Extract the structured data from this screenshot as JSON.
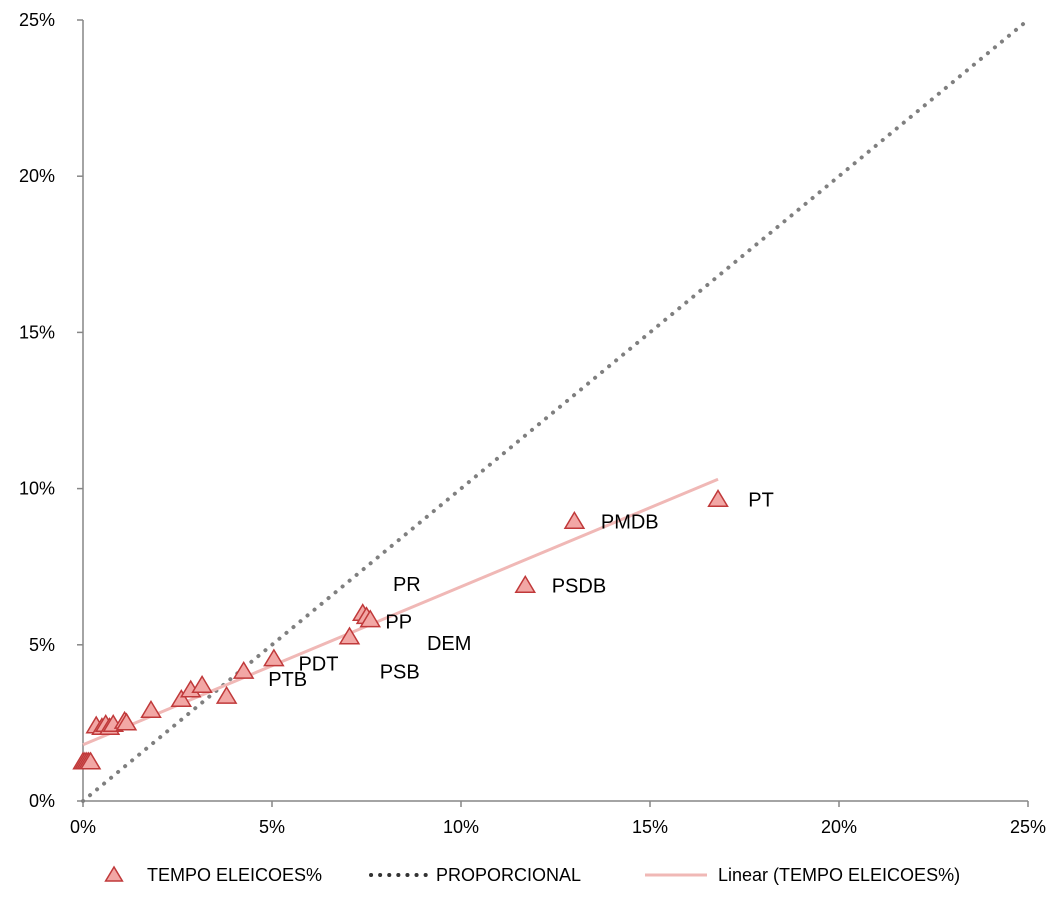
{
  "chart_data": {
    "type": "scatter",
    "x_ticks": [
      "0%",
      "5%",
      "10%",
      "15%",
      "20%",
      "25%"
    ],
    "y_ticks": [
      "0%",
      "5%",
      "10%",
      "15%",
      "20%",
      "25%"
    ],
    "xlim": [
      0,
      25
    ],
    "ylim": [
      0,
      25
    ],
    "grid": false,
    "legend_position": "bottom",
    "colors": {
      "marker_fill": "#f2a7a5",
      "marker_stroke": "#c0393a",
      "proportional": "#7f7f7f",
      "trend": "#f0b8b6",
      "axis": "#868686"
    },
    "series": [
      {
        "name": "TEMPO ELEICOES%",
        "points": [
          {
            "x": 0.0,
            "y": 1.25
          },
          {
            "x": 0.05,
            "y": 1.25
          },
          {
            "x": 0.1,
            "y": 1.25
          },
          {
            "x": 0.15,
            "y": 1.25
          },
          {
            "x": 0.2,
            "y": 1.25
          },
          {
            "x": 0.35,
            "y": 2.4
          },
          {
            "x": 0.5,
            "y": 2.35
          },
          {
            "x": 0.6,
            "y": 2.45
          },
          {
            "x": 0.7,
            "y": 2.35
          },
          {
            "x": 0.8,
            "y": 2.45
          },
          {
            "x": 1.1,
            "y": 2.55
          },
          {
            "x": 1.15,
            "y": 2.5
          },
          {
            "x": 1.8,
            "y": 2.9
          },
          {
            "x": 2.6,
            "y": 3.25
          },
          {
            "x": 2.85,
            "y": 3.55
          },
          {
            "x": 3.15,
            "y": 3.7
          },
          {
            "x": 3.8,
            "y": 3.35
          },
          {
            "x": 4.25,
            "y": 4.15
          },
          {
            "x": 5.05,
            "y": 4.55
          },
          {
            "x": 7.05,
            "y": 5.25
          },
          {
            "x": 7.4,
            "y": 6.0
          },
          {
            "x": 7.5,
            "y": 5.9
          },
          {
            "x": 7.6,
            "y": 5.8
          },
          {
            "x": 11.7,
            "y": 6.9
          },
          {
            "x": 13.0,
            "y": 8.95
          },
          {
            "x": 16.8,
            "y": 9.65
          }
        ]
      },
      {
        "name": "PROPORCIONAL",
        "points": [
          {
            "x": 0,
            "y": 0
          },
          {
            "x": 25,
            "y": 25
          }
        ]
      },
      {
        "name": "Linear (TEMPO ELEICOES%)",
        "points": [
          {
            "x": 0,
            "y": 1.8
          },
          {
            "x": 16.8,
            "y": 10.3
          }
        ]
      }
    ],
    "annotations": [
      {
        "text": "PT",
        "x": 17.6,
        "y": 9.65
      },
      {
        "text": "PMDB",
        "x": 13.7,
        "y": 8.95
      },
      {
        "text": "PSDB",
        "x": 12.4,
        "y": 6.9
      },
      {
        "text": "PR",
        "x": 8.2,
        "y": 6.95
      },
      {
        "text": "PP",
        "x": 8.0,
        "y": 5.75
      },
      {
        "text": "DEM",
        "x": 9.1,
        "y": 5.05
      },
      {
        "text": "PSB",
        "x": 7.85,
        "y": 4.15
      },
      {
        "text": "PDT",
        "x": 5.7,
        "y": 4.4
      },
      {
        "text": "PTB",
        "x": 4.9,
        "y": 3.9
      }
    ]
  }
}
